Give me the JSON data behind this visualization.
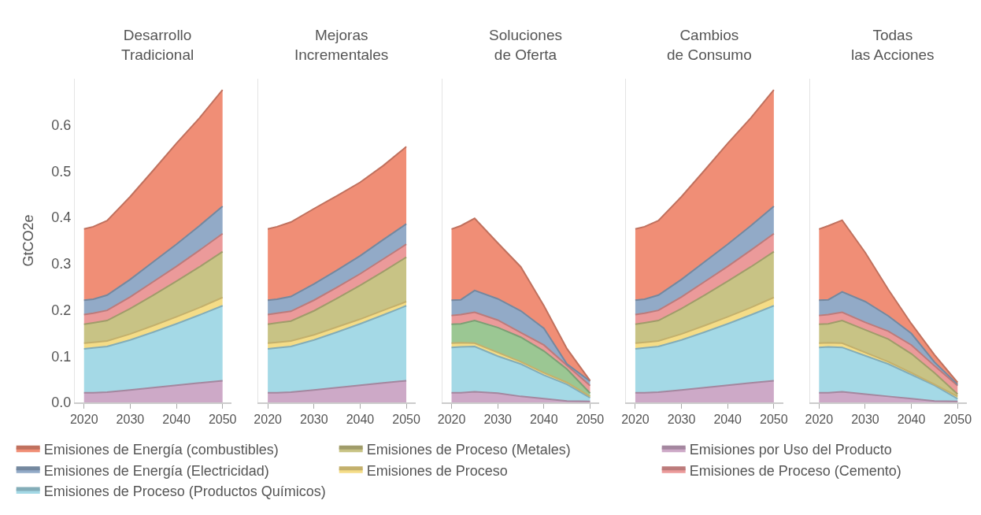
{
  "chart_data": [
    {
      "type": "area",
      "title": "Desarrollo\nTradicional",
      "ylabel": "GtCO2e",
      "stacked": true,
      "legend": "bottom",
      "x": [
        2020,
        2022,
        2025,
        2030,
        2035,
        2040,
        2045,
        2050
      ],
      "xlim": [
        2018,
        2052
      ],
      "xticks": [
        2020,
        2030,
        2040,
        2050
      ],
      "ylim": [
        0,
        0.7
      ],
      "yticks": [
        {
          "value": 0,
          "label": "0.0"
        },
        0.1,
        0.2,
        0.3,
        0.4,
        0.5,
        0.6
      ],
      "series": [
        {
          "name": "Emisiones por Uso del Producto",
          "color": "#cda9c7",
          "values": [
            0.021,
            0.021,
            0.022,
            0.027,
            0.032,
            0.037,
            0.042,
            0.047
          ]
        },
        {
          "name": "Emisiones de Proceso (Productos Químicos)",
          "color": "#a4d9e6",
          "values": [
            0.095,
            0.097,
            0.099,
            0.108,
            0.12,
            0.133,
            0.147,
            0.162
          ]
        },
        {
          "name": "Emisiones de Proceso",
          "color": "#f4dc87",
          "values": [
            0.012,
            0.012,
            0.012,
            0.013,
            0.014,
            0.015,
            0.016,
            0.018
          ]
        },
        {
          "name": "Emisiones de Proceso (Metales)",
          "color": "#c8c385",
          "values": [
            0.041,
            0.042,
            0.044,
            0.055,
            0.066,
            0.077,
            0.088,
            0.099
          ]
        },
        {
          "name": "Emisiones de Proceso (Cemento)",
          "color": "#eb9a9a",
          "values": [
            0.021,
            0.021,
            0.022,
            0.025,
            0.029,
            0.032,
            0.036,
            0.039
          ]
        },
        {
          "name": "Emisiones de Energía (Electricidad)",
          "color": "#92aac7",
          "values": [
            0.031,
            0.03,
            0.033,
            0.038,
            0.043,
            0.048,
            0.053,
            0.059
          ]
        },
        {
          "name": "Emisiones de Energía (combustibles)",
          "color": "#f08e76",
          "values": [
            0.154,
            0.157,
            0.161,
            0.179,
            0.198,
            0.218,
            0.233,
            0.252
          ]
        }
      ]
    },
    {
      "type": "area",
      "title": "Mejoras\nIncrementales",
      "stacked": true,
      "tick_labels": "x",
      "x": [
        2020,
        2022,
        2025,
        2030,
        2035,
        2040,
        2045,
        2050
      ],
      "xlim": [
        2018,
        2052
      ],
      "xticks": [
        2020,
        2030,
        2040,
        2050
      ],
      "ylim": [
        0,
        0.7
      ],
      "series": [
        {
          "color": "#cda9c7",
          "values": [
            0.021,
            0.021,
            0.022,
            0.027,
            0.032,
            0.037,
            0.042,
            0.047
          ]
        },
        {
          "color": "#a4d9e6",
          "values": [
            0.095,
            0.097,
            0.099,
            0.108,
            0.12,
            0.133,
            0.147,
            0.162
          ]
        },
        {
          "color": "#f4dc87",
          "values": [
            0.012,
            0.012,
            0.012,
            0.011,
            0.011,
            0.01,
            0.01,
            0.009
          ]
        },
        {
          "color": "#c8c385",
          "values": [
            0.041,
            0.042,
            0.043,
            0.052,
            0.062,
            0.073,
            0.084,
            0.096
          ]
        },
        {
          "color": "#eb9a9a",
          "values": [
            0.021,
            0.021,
            0.021,
            0.023,
            0.024,
            0.025,
            0.027,
            0.028
          ]
        },
        {
          "color": "#92aac7",
          "values": [
            0.031,
            0.03,
            0.032,
            0.035,
            0.037,
            0.039,
            0.042,
            0.044
          ]
        },
        {
          "color": "#f08e76",
          "values": [
            0.154,
            0.157,
            0.161,
            0.163,
            0.161,
            0.159,
            0.16,
            0.167
          ]
        }
      ]
    },
    {
      "type": "area",
      "title": "Soluciones\nde Oferta",
      "stacked": true,
      "tick_labels": "x",
      "x": [
        2020,
        2022,
        2025,
        2030,
        2035,
        2040,
        2045,
        2050
      ],
      "xlim": [
        2018,
        2052
      ],
      "xticks": [
        2020,
        2030,
        2040,
        2050
      ],
      "ylim": [
        0,
        0.7
      ],
      "series": [
        {
          "color": "#cda9c7",
          "values": [
            0.021,
            0.021,
            0.023,
            0.02,
            0.013,
            0.008,
            0.003,
            0.002
          ]
        },
        {
          "color": "#a4d9e6",
          "values": [
            0.098,
            0.099,
            0.098,
            0.08,
            0.07,
            0.051,
            0.036,
            0.008
          ]
        },
        {
          "color": "#f4dc87",
          "values": [
            0.009,
            0.009,
            0.007,
            0.008,
            0.005,
            0.005,
            0.004,
            0.003
          ]
        },
        {
          "color": "#9bc793",
          "values": [
            0.041,
            0.041,
            0.049,
            0.054,
            0.053,
            0.047,
            0.029,
            0.007
          ]
        },
        {
          "color": "#eb9a9a",
          "values": [
            0.019,
            0.02,
            0.018,
            0.016,
            0.01,
            0.013,
            0.008,
            0.016
          ]
        },
        {
          "color": "#92aac7",
          "values": [
            0.033,
            0.032,
            0.047,
            0.046,
            0.047,
            0.036,
            0.003,
            0.01
          ]
        },
        {
          "color": "#f08e76",
          "values": [
            0.154,
            0.16,
            0.156,
            0.121,
            0.095,
            0.049,
            0.033,
            0.001
          ]
        }
      ]
    },
    {
      "type": "area",
      "title": "Cambios\nde Consumo",
      "stacked": true,
      "tick_labels": "x",
      "x": [
        2020,
        2022,
        2025,
        2030,
        2035,
        2040,
        2045,
        2050
      ],
      "xlim": [
        2018,
        2052
      ],
      "xticks": [
        2020,
        2030,
        2040,
        2050
      ],
      "ylim": [
        0,
        0.7
      ],
      "series": [
        {
          "color": "#cda9c7",
          "values": [
            0.021,
            0.021,
            0.022,
            0.027,
            0.032,
            0.037,
            0.042,
            0.047
          ]
        },
        {
          "color": "#a4d9e6",
          "values": [
            0.095,
            0.097,
            0.099,
            0.108,
            0.12,
            0.133,
            0.147,
            0.162
          ]
        },
        {
          "color": "#f4dc87",
          "values": [
            0.012,
            0.012,
            0.012,
            0.013,
            0.014,
            0.015,
            0.016,
            0.018
          ]
        },
        {
          "color": "#c8c385",
          "values": [
            0.041,
            0.042,
            0.044,
            0.055,
            0.066,
            0.077,
            0.088,
            0.099
          ]
        },
        {
          "color": "#eb9a9a",
          "values": [
            0.021,
            0.021,
            0.022,
            0.025,
            0.029,
            0.032,
            0.036,
            0.039
          ]
        },
        {
          "color": "#92aac7",
          "values": [
            0.031,
            0.03,
            0.033,
            0.038,
            0.043,
            0.048,
            0.053,
            0.059
          ]
        },
        {
          "color": "#f08e76",
          "values": [
            0.154,
            0.157,
            0.161,
            0.179,
            0.198,
            0.218,
            0.233,
            0.252
          ]
        }
      ]
    },
    {
      "type": "area",
      "title": "Todas\nlas Acciones",
      "stacked": true,
      "tick_labels": "x",
      "x": [
        2020,
        2022,
        2025,
        2030,
        2035,
        2040,
        2045,
        2050
      ],
      "xlim": [
        2018,
        2052
      ],
      "xticks": [
        2020,
        2030,
        2040,
        2050
      ],
      "ylim": [
        0,
        0.7
      ],
      "series": [
        {
          "color": "#cda9c7",
          "values": [
            0.021,
            0.021,
            0.023,
            0.018,
            0.013,
            0.008,
            0.003,
            0.002
          ]
        },
        {
          "color": "#a4d9e6",
          "values": [
            0.098,
            0.099,
            0.096,
            0.083,
            0.07,
            0.052,
            0.034,
            0.006
          ]
        },
        {
          "color": "#f4dc87",
          "values": [
            0.009,
            0.009,
            0.009,
            0.007,
            0.005,
            0.004,
            0.002,
            0.005
          ]
        },
        {
          "color": "#c8c385",
          "values": [
            0.041,
            0.041,
            0.049,
            0.049,
            0.049,
            0.041,
            0.025,
            0.005
          ]
        },
        {
          "color": "#eb9a9a",
          "values": [
            0.019,
            0.02,
            0.018,
            0.016,
            0.017,
            0.019,
            0.015,
            0.018
          ]
        },
        {
          "color": "#92aac7",
          "values": [
            0.033,
            0.032,
            0.044,
            0.045,
            0.033,
            0.025,
            0.008,
            0.003
          ]
        },
        {
          "color": "#f08e76",
          "values": [
            0.154,
            0.16,
            0.155,
            0.106,
            0.057,
            0.021,
            0.016,
            0.004
          ]
        }
      ]
    }
  ]
}
